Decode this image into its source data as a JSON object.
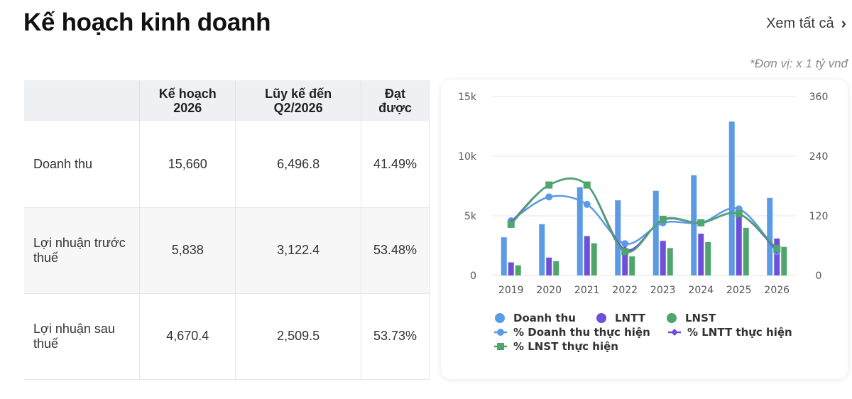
{
  "header": {
    "title": "Kế hoạch kinh doanh",
    "see_all_label": "Xem tất cả",
    "unit_note": "*Đơn vị: x 1 tỷ vnđ"
  },
  "table": {
    "columns": [
      "",
      "Kế hoạch 2026",
      "Lũy kế đến Q2/2026",
      "Đạt được"
    ],
    "rows": [
      {
        "label": "Doanh thu",
        "plan": "15,660",
        "cumulative": "6,496.8",
        "achieved": "41.49%"
      },
      {
        "label": "Lợi nhuận trước thuế",
        "plan": "5,838",
        "cumulative": "3,122.4",
        "achieved": "53.48%"
      },
      {
        "label": "Lợi nhuận sau thuế",
        "plan": "4,670.4",
        "cumulative": "2,509.5",
        "achieved": "53.73%"
      }
    ]
  },
  "chart_data": {
    "type": "bar",
    "categories": [
      "2019",
      "2020",
      "2021",
      "2022",
      "2023",
      "2024",
      "2025",
      "2026"
    ],
    "ylim": [
      0,
      15000
    ],
    "y_ticks": [
      "0",
      "5k",
      "10k",
      "15k"
    ],
    "y2lim": [
      0,
      360
    ],
    "y2_ticks": [
      "0",
      "120",
      "240",
      "360"
    ],
    "grid": true,
    "legend_position": "bottom",
    "bar_series": [
      {
        "name": "Doanh thu",
        "color": "#5b9be6",
        "values": [
          3200,
          4300,
          7400,
          6300,
          7100,
          8400,
          12900,
          6500
        ]
      },
      {
        "name": "LNTT",
        "color": "#6e4fd8",
        "values": [
          1100,
          1500,
          3300,
          1900,
          2900,
          3500,
          4900,
          3100
        ]
      },
      {
        "name": "LNST",
        "color": "#4fa66d",
        "values": [
          850,
          1200,
          2700,
          1600,
          2300,
          2800,
          4000,
          2400
        ]
      }
    ],
    "line_series": [
      {
        "name": "% Doanh thu thực hiện",
        "color": "#5b9be6",
        "marker": "circle",
        "values": [
          110,
          158,
          143,
          64,
          106,
          106,
          134,
          48
        ]
      },
      {
        "name": "% LNTT thực hiện",
        "color": "#6e4fd8",
        "marker": "diamond",
        "values": [
          106,
          182,
          182,
          52,
          112,
          106,
          124,
          50
        ]
      },
      {
        "name": "% LNST thực hiện",
        "color": "#4fa66d",
        "marker": "square",
        "values": [
          103,
          182,
          182,
          48,
          113,
          106,
          124,
          54
        ]
      }
    ]
  }
}
